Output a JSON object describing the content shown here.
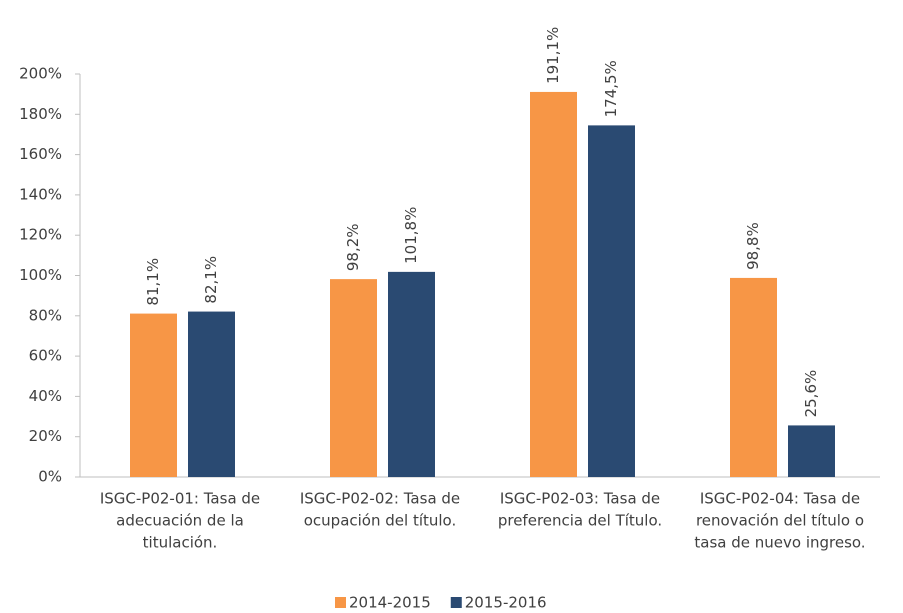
{
  "chart_data": {
    "type": "bar",
    "categories": [
      [
        "ISGC-P02-01: Tasa de",
        "adecuación de la",
        "titulación."
      ],
      [
        "ISGC-P02-02: Tasa de",
        "ocupación del título."
      ],
      [
        "ISGC-P02-03: Tasa de",
        "preferencia del Título."
      ],
      [
        "ISGC-P02-04: Tasa de",
        "renovación del título o",
        "tasa de nuevo ingreso."
      ]
    ],
    "series": [
      {
        "name": "2014-2015",
        "color": "#f79646",
        "values": [
          81.1,
          98.2,
          191.1,
          98.8
        ],
        "value_labels": [
          "81,1%",
          "98,2%",
          "191,1%",
          "98,8%"
        ]
      },
      {
        "name": "2015-2016",
        "color": "#2a4a72",
        "values": [
          82.1,
          101.8,
          174.5,
          25.6
        ],
        "value_labels": [
          "82,1%",
          "101,8%",
          "174,5%",
          "25,6%"
        ]
      }
    ],
    "ylim": [
      0,
      200
    ],
    "yticks": [
      {
        "value": 0,
        "label": "0%"
      },
      {
        "value": 20,
        "label": "20%"
      },
      {
        "value": 40,
        "label": "40%"
      },
      {
        "value": 60,
        "label": "60%"
      },
      {
        "value": 80,
        "label": "80%"
      },
      {
        "value": 100,
        "label": "100%"
      },
      {
        "value": 120,
        "label": "120%"
      },
      {
        "value": 140,
        "label": "140%"
      },
      {
        "value": 160,
        "label": "160%"
      },
      {
        "value": 180,
        "label": "180%"
      },
      {
        "value": 200,
        "label": "200%"
      }
    ],
    "grid": false,
    "legend": "bottom"
  }
}
